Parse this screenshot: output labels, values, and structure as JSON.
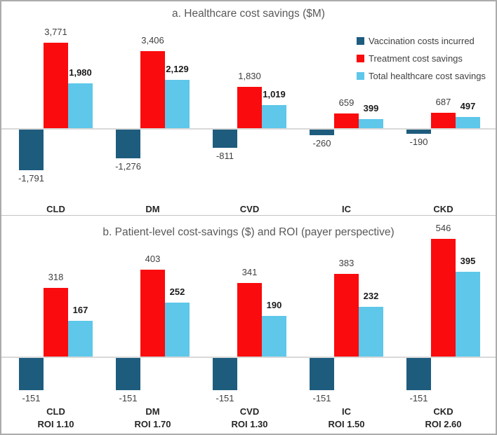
{
  "page": {
    "border_color": "#ABABAB",
    "background": "#FFFFFF"
  },
  "colors": {
    "vaccination": "#1E5C7E",
    "treatment": "#FA0B0D",
    "total": "#5EC7EA",
    "title_text": "#595959",
    "value_text": "#3F3F3F",
    "bold_value_text": "#1A1A1A",
    "axis_line": "#D9D9D9"
  },
  "legend": {
    "position": "top-right-of-chart-a",
    "items": [
      {
        "label": "Vaccination costs incurred",
        "color": "#1E5C7E"
      },
      {
        "label": "Treatment cost savings",
        "color": "#FA0B0D"
      },
      {
        "label": "Total healthcare cost savings",
        "color": "#5EC7EA"
      }
    ]
  },
  "chart_data": [
    {
      "id": "a",
      "type": "bar",
      "title": "a. Healthcare cost savings ($M)",
      "categories": [
        "CLD",
        "DM",
        "CVD",
        "IC",
        "CKD"
      ],
      "series": [
        {
          "name": "Vaccination costs incurred",
          "color": "#1E5C7E",
          "values": [
            -1791,
            -1276,
            -811,
            -260,
            -190
          ],
          "labels": [
            "-1,791",
            "-1,276",
            "-811",
            "-260",
            "-190"
          ],
          "bold_labels": false
        },
        {
          "name": "Treatment cost savings",
          "color": "#FA0B0D",
          "values": [
            3771,
            3406,
            1830,
            659,
            687
          ],
          "labels": [
            "3,771",
            "3,406",
            "1,830",
            "659",
            "687"
          ],
          "bold_labels": false
        },
        {
          "name": "Total healthcare cost savings",
          "color": "#5EC7EA",
          "values": [
            1980,
            2129,
            1019,
            399,
            497
          ],
          "labels": [
            "1,980",
            "2,129",
            "1,019",
            "399",
            "497"
          ],
          "bold_labels": true
        }
      ],
      "ylim": [
        -2100,
        4400
      ],
      "grid": false,
      "legend_position": "top-right",
      "xlabel": "",
      "ylabel": ""
    },
    {
      "id": "b",
      "type": "bar",
      "title": "b. Patient-level cost-savings ($) and ROI (payer perspective)",
      "categories": [
        "CLD",
        "DM",
        "CVD",
        "IC",
        "CKD"
      ],
      "category_sublabels": [
        "ROI 1.10",
        "ROI 1.70",
        "ROI 1.30",
        "ROI 1.50",
        "ROI 2.60"
      ],
      "series": [
        {
          "name": "Vaccination costs incurred",
          "color": "#1E5C7E",
          "values": [
            -151,
            -151,
            -151,
            -151,
            -151
          ],
          "labels": [
            "-151",
            "-151",
            "-151",
            "-151",
            "-151"
          ],
          "bold_labels": false
        },
        {
          "name": "Treatment cost savings",
          "color": "#FA0B0D",
          "values": [
            318,
            403,
            341,
            383,
            546
          ],
          "labels": [
            "318",
            "403",
            "341",
            "383",
            "546"
          ],
          "bold_labels": false
        },
        {
          "name": "Total healthcare cost savings",
          "color": "#5EC7EA",
          "values": [
            167,
            252,
            190,
            232,
            395
          ],
          "labels": [
            "167",
            "252",
            "190",
            "232",
            "395"
          ],
          "bold_labels": true
        }
      ],
      "ylim": [
        -200,
        650
      ],
      "grid": false,
      "legend_position": "none",
      "xlabel": "",
      "ylabel": ""
    }
  ]
}
